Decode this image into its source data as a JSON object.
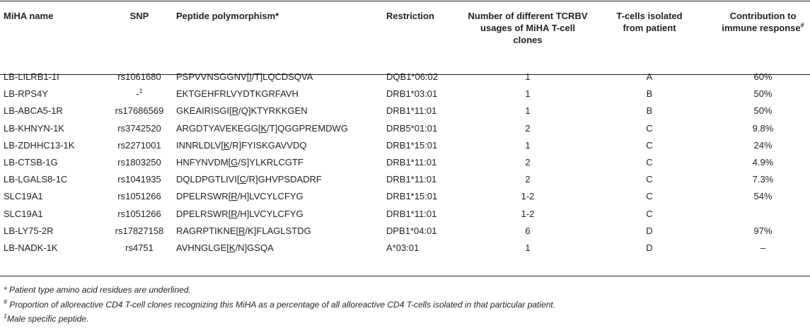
{
  "headers": {
    "name": "MiHA name",
    "snp": "SNP",
    "peptide": "Peptide polymorphism*",
    "restriction": "Restriction",
    "tcrbv": "Number of different TCRBV usages of MiHA T-cell clones",
    "patient": "T-cells isolated from patient",
    "contribution": "Contribution to immune response",
    "contribution_mark": "#"
  },
  "rows": [
    {
      "name": "LB-LILRB1-1I",
      "snp": "rs1061680",
      "snp_mark": "",
      "pep_pre": "PSPVVNSGGNV[",
      "pep_u": "I",
      "pep_post": "/T]LQCDSQVA",
      "restriction": "DQB1*06:02",
      "tcrbv": "1",
      "patient": "A",
      "contribution": "60%"
    },
    {
      "name": "LB-RPS4Y",
      "snp": "-",
      "snp_mark": "‡",
      "pep_pre": "EKTGEHFRLVYDTKGRFAVH",
      "pep_u": "",
      "pep_post": "",
      "restriction": "DRB1*03:01",
      "tcrbv": "1",
      "patient": "B",
      "contribution": "50%"
    },
    {
      "name": "LB-ABCA5-1R",
      "snp": "rs17686569",
      "snp_mark": "",
      "pep_pre": "GKEAIRISGI[",
      "pep_u": "R",
      "pep_post": "/Q]KTYRKKGEN",
      "restriction": "DRB1*11:01",
      "tcrbv": "1",
      "patient": "B",
      "contribution": "50%"
    },
    {
      "name": "LB-KHNYN-1K",
      "snp": "rs3742520",
      "snp_mark": "",
      "pep_pre": "ARGDTYAVEKEGG[",
      "pep_u": "K",
      "pep_post": "/T]QGGPREMDWG",
      "restriction": "DRB5*01:01",
      "tcrbv": "2",
      "patient": "C",
      "contribution": "9.8%"
    },
    {
      "name": "LB-ZDHHC13-1K",
      "snp": "rs2271001",
      "snp_mark": "",
      "pep_pre": "INNRLDLV[",
      "pep_u": "K",
      "pep_post": "/R]FYISKGAVVDQ",
      "restriction": "DRB1*15:01",
      "tcrbv": "1",
      "patient": "C",
      "contribution": "24%"
    },
    {
      "name": "LB-CTSB-1G",
      "snp": "rs1803250",
      "snp_mark": "",
      "pep_pre": "HNFYNVDM[",
      "pep_u": "G",
      "pep_post": "/S]YLKRLCGTF",
      "restriction": "DRB1*11:01",
      "tcrbv": "2",
      "patient": "C",
      "contribution": "4.9%"
    },
    {
      "name": "LB-LGALS8-1C",
      "snp": "rs1041935",
      "snp_mark": "",
      "pep_pre": "DQLDPGTLIVI[",
      "pep_u": "C",
      "pep_post": "/R]GHVPSDADRF",
      "restriction": "DRB1*11:01",
      "tcrbv": "2",
      "patient": "C",
      "contribution": "7.3%"
    },
    {
      "name": "SLC19A1",
      "snp": "rs1051266",
      "snp_mark": "",
      "pep_pre": "DPELRSWR[",
      "pep_u": "R",
      "pep_post": "/H]LVCYLCFYG",
      "restriction": "DRB1*15:01",
      "tcrbv": "1-2",
      "patient": "C",
      "contribution": "54%"
    },
    {
      "name": "SLC19A1",
      "snp": "rs1051266",
      "snp_mark": "",
      "pep_pre": "DPELRSWR[",
      "pep_u": "R",
      "pep_post": "/H]LVCYLCFYG",
      "restriction": "DRB1*11:01",
      "tcrbv": "1-2",
      "patient": "C",
      "contribution": ""
    },
    {
      "name": "LB-LY75-2R",
      "snp": "rs17827158",
      "snp_mark": "",
      "pep_pre": "RAGRPTIKNE[",
      "pep_u": "R",
      "pep_post": "/K]FLAGLSTDG",
      "restriction": "DPB1*04:01",
      "tcrbv": "6",
      "patient": "D",
      "contribution": "97%"
    },
    {
      "name": "LB-NADK-1K",
      "snp": "rs4751",
      "snp_mark": "",
      "pep_pre": "AVHNGLGE[",
      "pep_u": "K",
      "pep_post": "/N]GSQA",
      "restriction": "A*03:01",
      "tcrbv": "1",
      "patient": "D",
      "contribution": "–"
    }
  ],
  "footnotes": [
    {
      "mark": "*",
      "text": " Patient type amino acid residues are underlined."
    },
    {
      "mark": "#",
      "text": " Proportion of alloreactive CD4 T-cell clones recognizing this MiHA as a percentage of all alloreactive CD4 T-cells isolated in that particular patient."
    },
    {
      "mark": "‡",
      "text": "Male specific peptide."
    }
  ]
}
